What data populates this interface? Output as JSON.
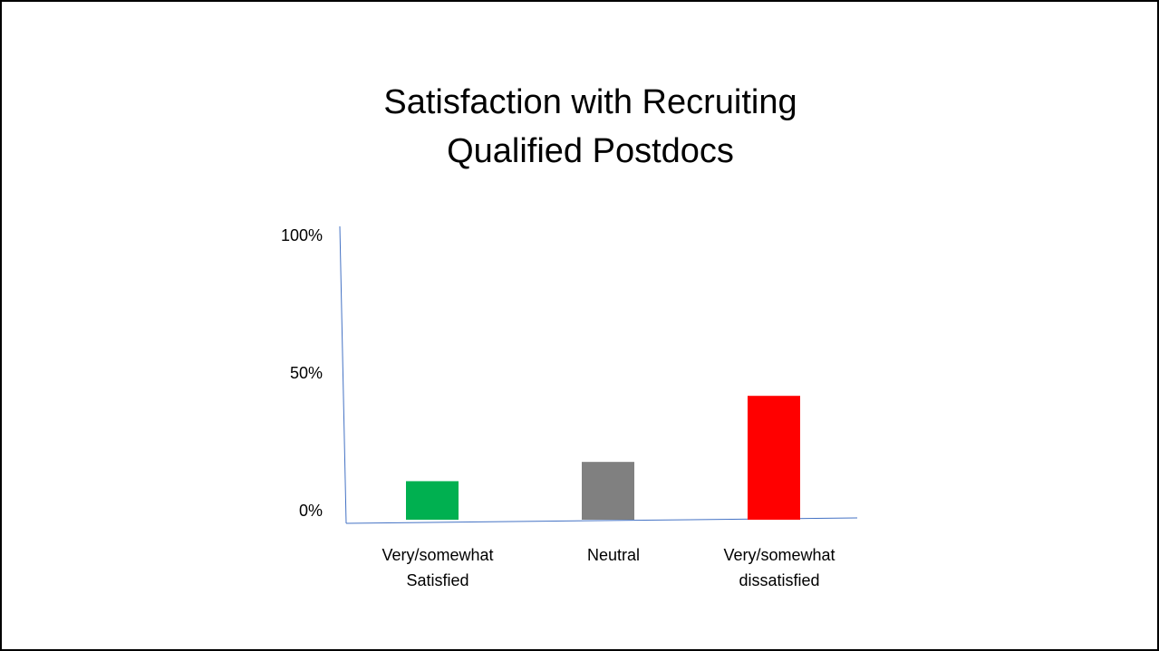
{
  "chart_data": {
    "type": "bar",
    "title_lines": [
      "Satisfaction with Recruiting",
      "Qualified Postdocs"
    ],
    "categories": [
      [
        "Very/somewhat",
        "Satisfied"
      ],
      [
        "Neutral"
      ],
      [
        "Very/somewhat",
        "dissatisfied"
      ]
    ],
    "values": [
      14,
      21,
      45
    ],
    "value_unit": "%",
    "colors": [
      "#00b050",
      "#808080",
      "#ff0000"
    ],
    "y_ticks": [
      {
        "value": 0,
        "label": "0%"
      },
      {
        "value": 50,
        "label": "50%"
      },
      {
        "value": 100,
        "label": "100%"
      }
    ],
    "ylim": [
      0,
      100
    ],
    "axis_color": "#4472c4",
    "grid": false,
    "legend": "none"
  }
}
